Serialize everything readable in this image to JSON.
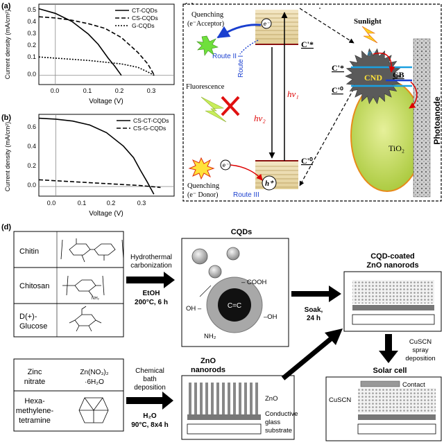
{
  "panel_a": {
    "label": "(a)",
    "ylabel": "Current density (mA/cm²)",
    "xlabel": "Voltage (V)",
    "legend": [
      "CT-CQDs",
      "CS-CQDs",
      "G-CQDs"
    ],
    "yticks": [
      "0.5",
      "0.4",
      "0.3",
      "0.2",
      "0.1",
      "0.0"
    ],
    "xticks": [
      "0.0",
      "0.1",
      "0.2",
      "0.3"
    ]
  },
  "panel_b": {
    "label": "(b)",
    "ylabel": "Current density (mA/cm²)",
    "xlabel": "Voltage (V)",
    "legend": [
      "CS-CT-CQDs",
      "CS-G-CQDs"
    ],
    "yticks": [
      "0.6",
      "0.4",
      "0.2",
      "0.0"
    ],
    "xticks": [
      "0.0",
      "0.1",
      "0.2",
      "0.3"
    ]
  },
  "chart_data": [
    {
      "type": "line",
      "xlabel": "Voltage (V)",
      "ylabel": "Current density (mA/cm²)",
      "xlim": [
        -0.05,
        0.36
      ],
      "ylim": [
        -0.08,
        0.62
      ],
      "series": [
        {
          "name": "CT-CQDs",
          "style": "solid",
          "x": [
            -0.05,
            0.0,
            0.05,
            0.1,
            0.13,
            0.16,
            0.18,
            0.2
          ],
          "y": [
            0.58,
            0.54,
            0.47,
            0.36,
            0.27,
            0.15,
            0.08,
            0.0
          ]
        },
        {
          "name": "CS-CQDs",
          "style": "dashed",
          "x": [
            -0.05,
            0.0,
            0.05,
            0.1,
            0.15,
            0.2,
            0.25,
            0.28,
            0.3
          ],
          "y": [
            0.51,
            0.5,
            0.48,
            0.45,
            0.41,
            0.33,
            0.2,
            0.1,
            0.0
          ]
        },
        {
          "name": "G-CQDs",
          "style": "dotted",
          "x": [
            -0.05,
            0.0,
            0.1,
            0.2,
            0.25,
            0.28,
            0.3
          ],
          "y": [
            0.16,
            0.15,
            0.13,
            0.1,
            0.07,
            0.03,
            0.0
          ]
        }
      ]
    },
    {
      "type": "line",
      "xlabel": "Voltage (V)",
      "ylabel": "Current density (mA/cm²)",
      "xlim": [
        -0.05,
        0.35
      ],
      "ylim": [
        -0.1,
        0.75
      ],
      "series": [
        {
          "name": "CS-CT-CQDs",
          "style": "solid",
          "x": [
            -0.05,
            0.0,
            0.05,
            0.1,
            0.15,
            0.2,
            0.23,
            0.25,
            0.27,
            0.29
          ],
          "y": [
            0.71,
            0.7,
            0.68,
            0.64,
            0.56,
            0.42,
            0.3,
            0.17,
            0.05,
            -0.08
          ]
        },
        {
          "name": "CS-G-CQDs",
          "style": "dashed",
          "x": [
            -0.05,
            0.0,
            0.1,
            0.2,
            0.25,
            0.28,
            0.31
          ],
          "y": [
            0.07,
            0.06,
            0.04,
            0.02,
            0.01,
            0.0,
            -0.01
          ]
        }
      ]
    }
  ],
  "panel_c": {
    "label": "(c)",
    "quench_top_1": "Quenching",
    "quench_top_2": "(e⁻Acceptor)",
    "route1": "Route I",
    "route2": "Route II",
    "route3": "Route III",
    "fluorescence": "Fluorescence",
    "hv1": "hν₁",
    "hv2": "hν₂",
    "c_star": "C'*",
    "c_zero": "C'⁰",
    "c_star2": "C'*",
    "c_zero2": "C'⁰",
    "e_minus": "e⁻",
    "h_plus": "h⁺",
    "quench_bottom_1": "Quenching",
    "quench_bottom_2": "(e⁻ Donor)",
    "sunlight": "Sunlight",
    "cnd": "CND",
    "cb": "CB",
    "tio2": "TiO₂",
    "photoanode": "Photoanode"
  },
  "panel_d": {
    "label": "(d)",
    "chitin": "Chitin",
    "chitosan": "Chitosan",
    "glucose_1": "D(+)-",
    "glucose_2": "Glucose",
    "hydro_1": "Hydrothermal",
    "hydro_2": "carbonization",
    "etoh": "EtOH",
    "cond1": "200°C, 6 h",
    "cqds_title": "CQDs",
    "cooh": "– COOH",
    "oh_left": "OH –",
    "oh_right": "–OH",
    "nh2": "NH₂",
    "cc": "C=C",
    "soak_1": "Soak,",
    "soak_2": "24 h",
    "coated_1": "CQD-coated",
    "coated_2": "ZnO nanorods",
    "zinc_1": "Zinc",
    "zinc_2": "nitrate",
    "zinc_formula_1": "Zn(NO₃)₂",
    "zinc_formula_2": "·6H₂O",
    "hexa_1": "Hexa-",
    "hexa_2": "methylene-",
    "hexa_3": "tetramine",
    "cbd_1": "Chemical",
    "cbd_2": "bath",
    "cbd_3": "deposition",
    "h2o": "H₂O",
    "cond2": "90°C, 8x4 h",
    "zno_title_1": "ZnO",
    "zno_title_2": "nanorods",
    "zno_label": "ZnO",
    "glass_1": "Conductive",
    "glass_2": "glass",
    "glass_3": "substrate",
    "cuscn_1": "CuSCN",
    "cuscn_2": "spray",
    "cuscn_3": "deposition",
    "solar_cell": "Solar cell",
    "contact": "Contact",
    "cuscn_label": "CuSCN"
  }
}
